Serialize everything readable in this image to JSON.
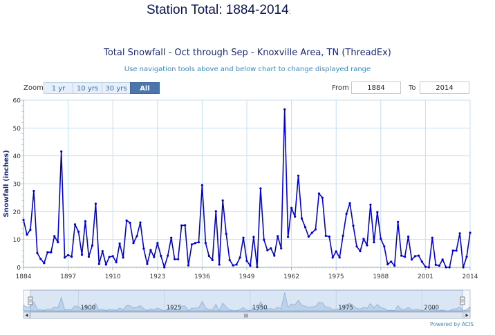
{
  "page_heading": "Station Total: 1884-2014",
  "page_heading_suffix": ":",
  "toolbar": {
    "zoom_label": "Zoom",
    "zoom_buttons": [
      "1 yr",
      "10 yrs",
      "30 yrs",
      "All"
    ],
    "active_zoom": "All",
    "from_label": "From",
    "from_value": "1884",
    "to_label": "To",
    "to_value": "2014"
  },
  "navigator": {
    "tick_labels": [
      "1900",
      "1925",
      "1950",
      "1975",
      "2000"
    ],
    "scrollbar_grip": "III"
  },
  "credit": "Powered by ACIS",
  "colors": {
    "series": "#0000dd",
    "grid": "#c5dff2",
    "navigator_fill": "#c8d9ec",
    "navigator_line": "#7ea3cc",
    "accent": "#4a76ad"
  },
  "chart_data": {
    "type": "line",
    "title": "Total Snowfall - Oct through Sep - Knoxville Area, TN (ThreadEx)",
    "subtitle": "Use navigation tools above and below chart to change displayed range",
    "xlabel": "",
    "ylabel": "Snowfall (inches)",
    "xlim": [
      1884,
      2014
    ],
    "ylim": [
      0,
      60
    ],
    "x_ticks": [
      "1884",
      "1897",
      "1910",
      "1923",
      "1936",
      "1949",
      "1962",
      "1975",
      "1988",
      "2001",
      "2014"
    ],
    "y_ticks": [
      "0",
      "10",
      "20",
      "30",
      "40",
      "50",
      "60"
    ],
    "grid": true,
    "legend": "none",
    "series": [
      {
        "values": [
          17.0,
          11.7,
          13.5,
          27.4,
          5.1,
          3.0,
          1.5,
          5.4,
          5.4,
          11.2,
          9.0,
          41.6,
          3.5,
          4.4,
          3.8,
          15.4,
          12.8,
          4.5,
          16.5,
          3.8,
          7.8,
          22.8,
          1.2,
          5.8,
          1.0,
          3.7,
          4.0,
          1.8,
          8.5,
          3.5,
          16.8,
          16.0,
          8.7,
          11.2,
          16.1,
          6.7,
          1.2,
          6.2,
          3.7,
          8.7,
          4.1,
          0.0,
          4.2,
          10.6,
          2.9,
          2.9,
          15.0,
          15.1,
          0.7,
          8.2,
          8.7,
          9.0,
          29.5,
          8.7,
          4.1,
          2.6,
          20.1,
          1.0,
          24.0,
          12.0,
          2.6,
          0.7,
          1.0,
          3.5,
          10.6,
          2.3,
          0.6,
          10.9,
          0.1,
          28.3,
          9.9,
          6.1,
          6.8,
          4.2,
          11.2,
          6.8,
          56.7,
          10.9,
          21.3,
          18.2,
          32.9,
          17.5,
          14.4,
          11.0,
          12.4,
          13.6,
          26.5,
          25.0,
          11.3,
          11.0,
          3.5,
          5.7,
          3.5,
          11.3,
          19.2,
          23.0,
          14.9,
          7.5,
          5.8,
          10.2,
          7.9,
          22.5,
          9.0,
          19.8,
          10.2,
          7.5,
          1.1,
          2.0,
          0.6,
          16.3,
          4.2,
          3.8,
          11.0,
          2.8,
          4.0,
          4.2,
          2.0,
          0.2,
          0.0,
          10.6,
          0.9,
          0.6,
          2.8,
          0.0,
          0.0,
          6.0,
          6.0,
          12.2,
          0.0,
          3.8,
          12.4
        ]
      }
    ]
  }
}
